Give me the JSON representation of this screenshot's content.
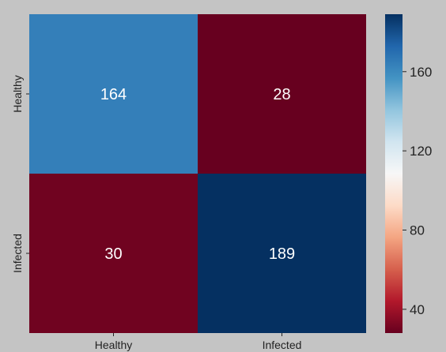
{
  "chart_data": {
    "type": "heatmap",
    "title": "",
    "xlabel": "",
    "ylabel": "",
    "x_categories": [
      "Healthy",
      "Infected"
    ],
    "y_categories": [
      "Healthy",
      "Infected"
    ],
    "values": [
      [
        164,
        28
      ],
      [
        30,
        189
      ]
    ],
    "colormap": "RdBu",
    "colorbar": {
      "range": [
        28,
        189
      ],
      "ticks": [
        40,
        80,
        120,
        160
      ],
      "colors": [
        "#67001f",
        "#b2182b",
        "#d6604d",
        "#f4a582",
        "#fddbc7",
        "#f7f7f7",
        "#d1e5f0",
        "#92c5de",
        "#4393c3",
        "#2166ac",
        "#053061"
      ]
    },
    "annotation_color": "#ffffff",
    "background_color": "#c4c4c4"
  }
}
